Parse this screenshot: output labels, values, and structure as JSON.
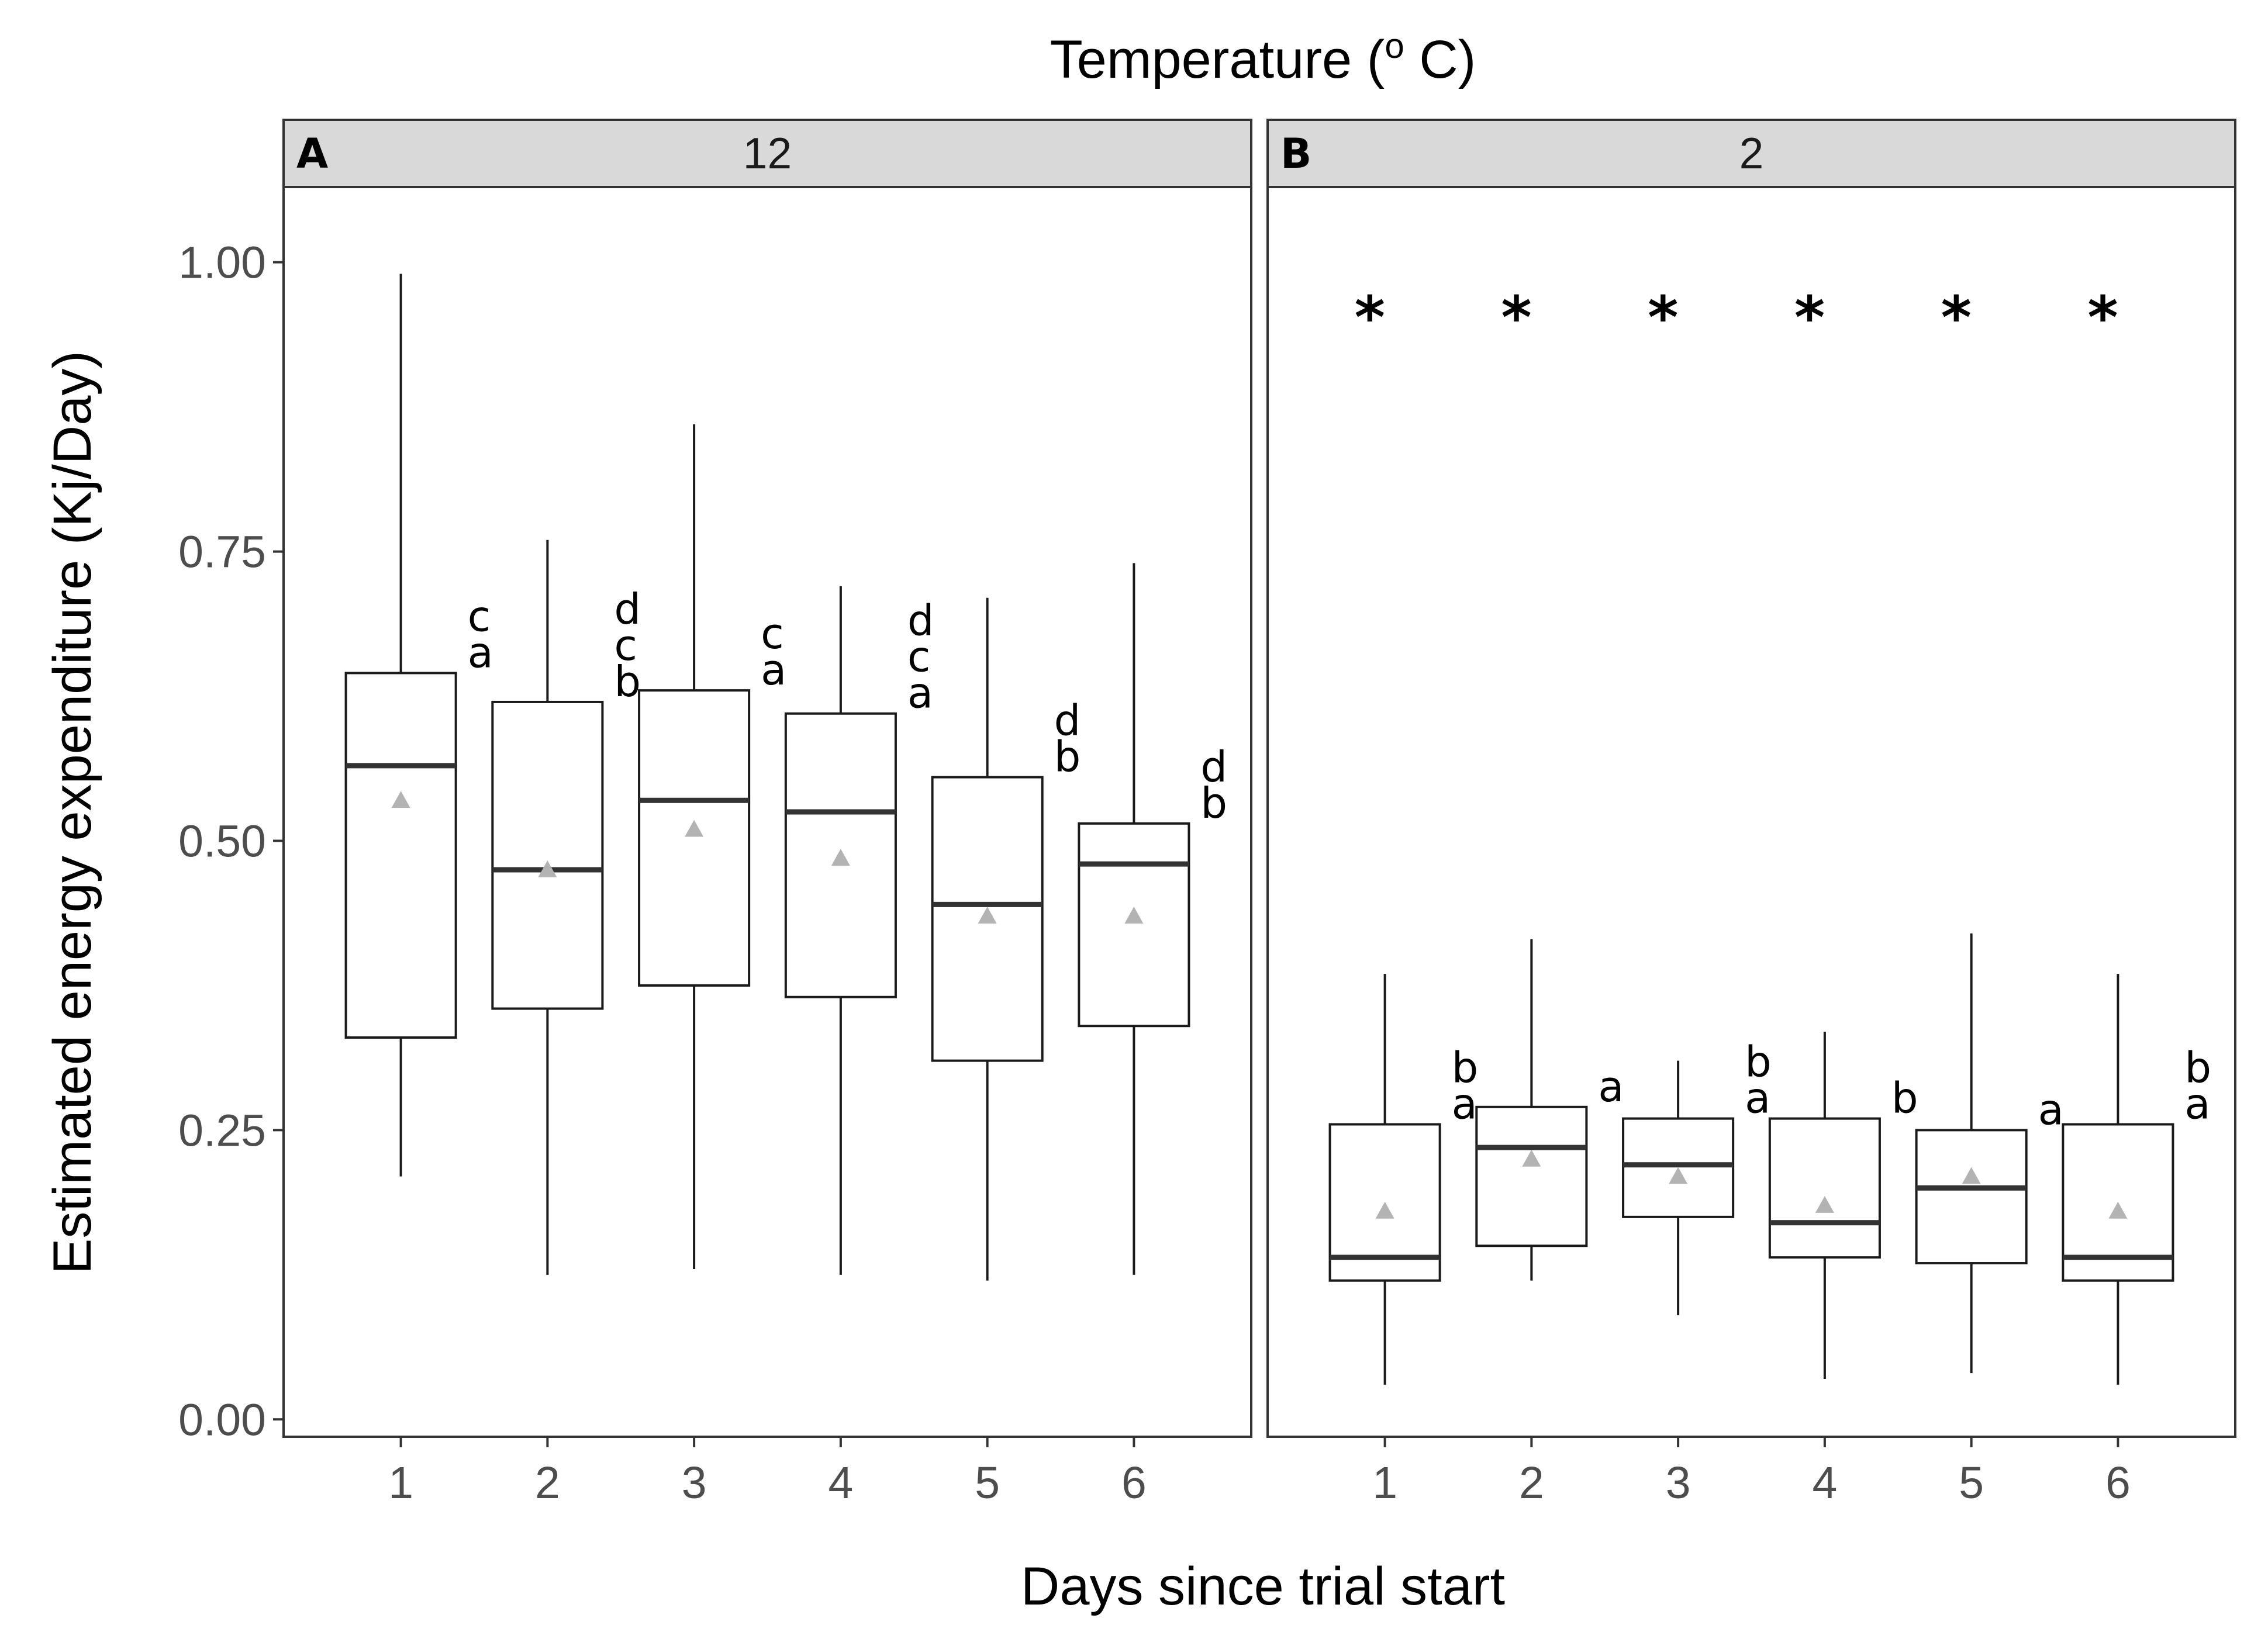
{
  "chart_data": {
    "type": "boxplot",
    "title": "Temperature (° C)",
    "title_parts": {
      "prefix": "Temperature  (",
      "degree": "o",
      "suffix": " C)"
    },
    "xlabel": "Days since trial start",
    "ylabel": "Estimated energy expenditure (Kj/Day)",
    "ylim": [
      -0.015,
      1.065
    ],
    "yticks": [
      0.0,
      0.25,
      0.5,
      0.75,
      1.0
    ],
    "ytick_labels": [
      "0.00",
      "0.25",
      "0.50",
      "0.75",
      "1.00"
    ],
    "categories": [
      "1",
      "2",
      "3",
      "4",
      "5",
      "6"
    ],
    "colors": {
      "box_edge": "#1a1a1a",
      "median": "#333333",
      "mean_marker": "#b3b3b3",
      "strip_fill": "#d9d9d9",
      "panel_border": "#333333"
    },
    "panels": [
      {
        "tag": "A",
        "strip_label": "12",
        "boxes": [
          {
            "day": "1",
            "min": 0.21,
            "q1": 0.33,
            "median": 0.565,
            "q3": 0.645,
            "max": 0.99,
            "mean": 0.535,
            "letters": [
              "c",
              "a"
            ]
          },
          {
            "day": "2",
            "min": 0.125,
            "q1": 0.355,
            "median": 0.475,
            "q3": 0.62,
            "max": 0.76,
            "mean": 0.475,
            "letters": [
              "d",
              "c",
              "b"
            ]
          },
          {
            "day": "3",
            "min": 0.13,
            "q1": 0.375,
            "median": 0.535,
            "q3": 0.63,
            "max": 0.86,
            "mean": 0.51,
            "letters": [
              "c",
              "a"
            ]
          },
          {
            "day": "4",
            "min": 0.125,
            "q1": 0.365,
            "median": 0.525,
            "q3": 0.61,
            "max": 0.72,
            "mean": 0.485,
            "letters": [
              "d",
              "c",
              "a"
            ]
          },
          {
            "day": "5",
            "min": 0.12,
            "q1": 0.31,
            "median": 0.445,
            "q3": 0.555,
            "max": 0.71,
            "mean": 0.435,
            "letters": [
              "d",
              "b"
            ]
          },
          {
            "day": "6",
            "min": 0.125,
            "q1": 0.34,
            "median": 0.48,
            "q3": 0.515,
            "max": 0.74,
            "mean": 0.435,
            "letters": [
              "d",
              "b"
            ]
          }
        ]
      },
      {
        "tag": "B",
        "strip_label": "2",
        "significance_marker": "*",
        "boxes": [
          {
            "day": "1",
            "min": 0.03,
            "q1": 0.12,
            "median": 0.14,
            "q3": 0.255,
            "max": 0.385,
            "mean": 0.18,
            "letters": [
              "b",
              "a"
            ]
          },
          {
            "day": "2",
            "min": 0.12,
            "q1": 0.15,
            "median": 0.235,
            "q3": 0.27,
            "max": 0.415,
            "mean": 0.225,
            "letters": [
              "a"
            ]
          },
          {
            "day": "3",
            "min": 0.09,
            "q1": 0.175,
            "median": 0.22,
            "q3": 0.26,
            "max": 0.31,
            "mean": 0.21,
            "letters": [
              "b",
              "a"
            ]
          },
          {
            "day": "4",
            "min": 0.035,
            "q1": 0.14,
            "median": 0.17,
            "q3": 0.26,
            "max": 0.335,
            "mean": 0.185,
            "letters": [
              "b"
            ]
          },
          {
            "day": "5",
            "min": 0.04,
            "q1": 0.135,
            "median": 0.2,
            "q3": 0.25,
            "max": 0.42,
            "mean": 0.21,
            "letters": [
              "a"
            ]
          },
          {
            "day": "6",
            "min": 0.03,
            "q1": 0.12,
            "median": 0.14,
            "q3": 0.255,
            "max": 0.385,
            "mean": 0.18,
            "letters": [
              "b",
              "a"
            ]
          }
        ]
      }
    ]
  }
}
